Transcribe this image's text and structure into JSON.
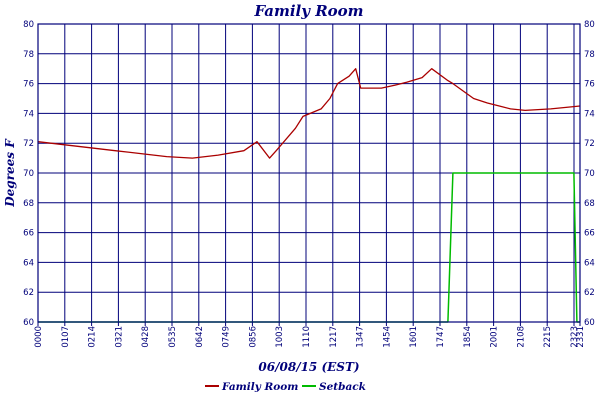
{
  "chart_data": {
    "type": "line",
    "title": "Family Room",
    "xlabel": "06/08/15 (EST)",
    "ylabel": "Degrees F",
    "ylim": [
      60,
      80
    ],
    "yticks": [
      60,
      62,
      64,
      66,
      68,
      70,
      72,
      74,
      76,
      78,
      80
    ],
    "x_tick_labels": [
      "0000",
      "0107",
      "0214",
      "0321",
      "0428",
      "0535",
      "0642",
      "0749",
      "0856",
      "1003",
      "1110",
      "1217",
      "1347",
      "1454",
      "1601",
      "1747",
      "1854",
      "2001",
      "2108",
      "2215",
      "2323",
      "2331"
    ],
    "grid": true,
    "legend_position": "bottom-center",
    "colors": {
      "axes": "#00007a",
      "grid": "#00007a",
      "family_room": "#aa0000",
      "setback": "#00bb00"
    },
    "series": [
      {
        "name": "Family Room",
        "x": [
          "0000",
          "0107",
          "0214",
          "0321",
          "0428",
          "0535",
          "0642",
          "0749",
          "0856",
          "0930",
          "1003",
          "1020",
          "1110",
          "1130",
          "1217",
          "1240",
          "1300",
          "1330",
          "1347",
          "1400",
          "1454",
          "1530",
          "1601",
          "1640",
          "1705",
          "1747",
          "1800",
          "1854",
          "1930",
          "2001",
          "2030",
          "2108",
          "2215",
          "2331"
        ],
        "values": [
          72.1,
          71.9,
          71.7,
          71.5,
          71.3,
          71.1,
          71.0,
          71.2,
          71.5,
          72.1,
          71.0,
          71.5,
          73.0,
          73.8,
          74.3,
          75.0,
          76.0,
          76.5,
          77.0,
          75.7,
          75.7,
          75.9,
          76.1,
          76.4,
          77.0,
          76.2,
          76.0,
          75.0,
          74.7,
          74.5,
          74.3,
          74.2,
          74.3,
          74.5
        ]
      },
      {
        "name": "Setback",
        "x": [
          "0000",
          "1747",
          "1800",
          "2315",
          "2323",
          "2331"
        ],
        "values": [
          60,
          60,
          70,
          70,
          60,
          60
        ]
      }
    ]
  }
}
